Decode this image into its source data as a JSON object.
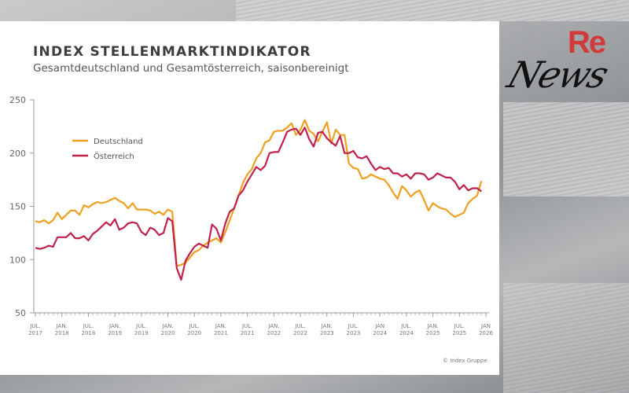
{
  "logo": {
    "text_top": "Re",
    "text_bottom": "News"
  },
  "chart_data": {
    "type": "line",
    "title": "INDEX STELLENMARKTINDIKATOR",
    "subtitle": "Gesamtdeutschland und Gesamtösterreich, saisonbereinigt",
    "credit": "© Index Gruppe",
    "ylim": [
      50,
      250
    ],
    "yticks": [
      50,
      100,
      150,
      200,
      250
    ],
    "xlim": [
      "2017-07",
      "2026-01"
    ],
    "xtick_labels": [
      [
        "JUL.",
        "2017"
      ],
      [
        "JAN.",
        "2018"
      ],
      [
        "JUL.",
        "2018"
      ],
      [
        "JAN.",
        "2019"
      ],
      [
        "JUL.",
        "2019"
      ],
      [
        "JAN.",
        "2020"
      ],
      [
        "JUL.",
        "2020"
      ],
      [
        "JAN.",
        "2021"
      ],
      [
        "JUL.",
        "2021"
      ],
      [
        "JAN.",
        "2022"
      ],
      [
        "JUL.",
        "2022"
      ],
      [
        "JAN.",
        "2023"
      ],
      [
        "JUL.",
        "2023"
      ],
      [
        "JAN",
        "2024"
      ],
      [
        "JUL.",
        "2024"
      ],
      [
        "JAN.",
        "2025"
      ],
      [
        "JUL.",
        "2025"
      ],
      [
        "JAN",
        "2026"
      ]
    ],
    "grid": false,
    "legend": "top-left",
    "x_start": "2017-07",
    "x_frequency": "monthly",
    "series": [
      {
        "name": "Deutschland",
        "color": "#f0a020",
        "values": [
          136,
          135,
          137,
          134,
          137,
          144,
          138,
          142,
          146,
          146,
          142,
          151,
          149,
          152,
          154,
          153,
          154,
          156,
          158,
          155,
          153,
          148,
          153,
          147,
          147,
          147,
          146,
          143,
          145,
          142,
          147,
          145,
          94,
          95,
          97,
          102,
          107,
          109,
          113,
          116,
          118,
          120,
          116,
          126,
          137,
          148,
          160,
          172,
          180,
          185,
          195,
          200,
          210,
          212,
          220,
          221,
          221,
          224,
          228,
          217,
          222,
          231,
          221,
          218,
          211,
          220,
          229,
          209,
          222,
          217,
          217,
          190,
          186,
          185,
          176,
          177,
          180,
          178,
          176,
          175,
          170,
          163,
          157,
          169,
          165,
          159,
          163,
          165,
          156,
          146,
          153,
          150,
          148,
          147,
          143,
          140,
          142,
          144,
          153,
          157,
          160,
          174
        ]
      },
      {
        "name": "Österreich",
        "color": "#c0214a",
        "values": [
          111,
          110,
          111,
          113,
          112,
          121,
          121,
          121,
          125,
          120,
          120,
          122,
          118,
          124,
          127,
          131,
          135,
          132,
          138,
          128,
          130,
          134,
          135,
          134,
          126,
          123,
          130,
          128,
          123,
          125,
          139,
          136,
          92,
          81,
          99,
          106,
          112,
          115,
          113,
          111,
          133,
          129,
          118,
          134,
          145,
          148,
          160,
          165,
          173,
          180,
          187,
          184,
          188,
          200,
          201,
          201,
          210,
          220,
          222,
          223,
          217,
          224,
          213,
          206,
          219,
          220,
          214,
          210,
          207,
          216,
          200,
          200,
          202,
          196,
          195,
          197,
          190,
          184,
          187,
          185,
          186,
          181,
          181,
          178,
          180,
          176,
          181,
          181,
          180,
          175,
          177,
          181,
          179,
          177,
          177,
          173,
          166,
          170,
          165,
          167,
          167,
          164
        ]
      }
    ]
  }
}
